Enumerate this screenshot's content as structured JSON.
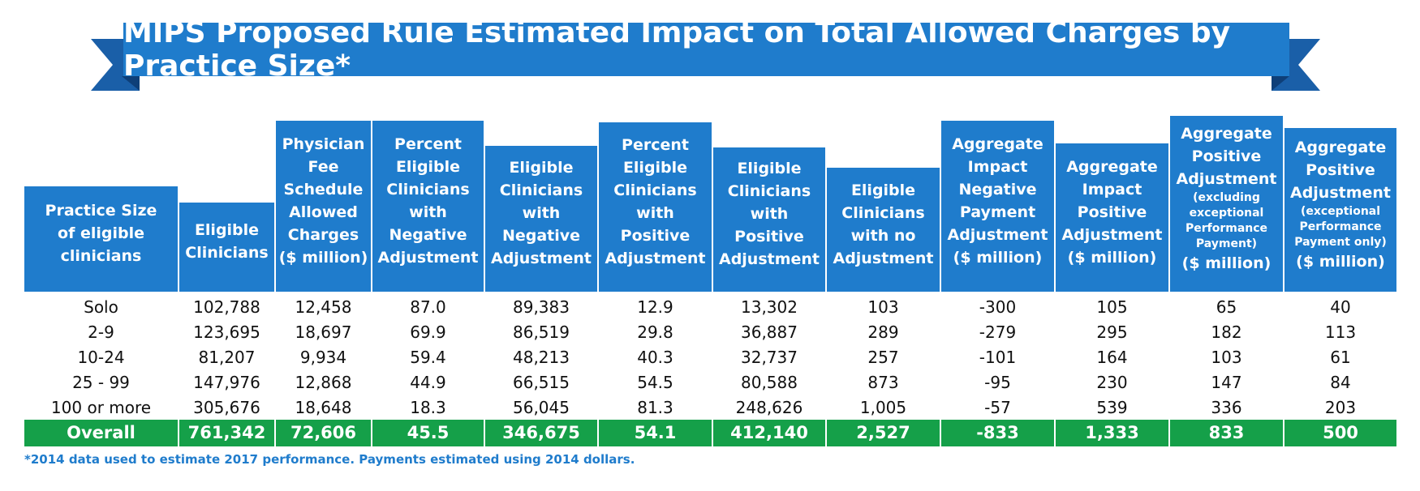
{
  "title": "MIPS Proposed Rule Estimated Impact on Total Allowed Charges by Practice Size*",
  "colors": {
    "header_blue": "#1f7ccc",
    "ribbon_dark": "#1a5fa8",
    "overall_green": "#15a049",
    "footnote_blue": "#1f7ccc"
  },
  "footnote": "*2014 data used to estimate 2017 performance. Payments estimated using 2014 dollars.",
  "chart_data": {
    "type": "table",
    "title": "MIPS Proposed Rule Estimated Impact on Total Allowed Charges by Practice Size*",
    "columns": [
      {
        "lines": [
          "Practice Size",
          "of eligible",
          "clinicians"
        ]
      },
      {
        "lines": [
          "Eligible",
          "Clinicians"
        ]
      },
      {
        "lines": [
          "Physician",
          "Fee",
          "Schedule",
          "Allowed",
          "Charges",
          "($ million)"
        ]
      },
      {
        "lines": [
          "Percent",
          "Eligible",
          "Clinicians",
          "with",
          "Negative",
          "Adjustment"
        ]
      },
      {
        "lines": [
          "Eligible",
          "Clinicians",
          "with",
          "Negative",
          "Adjustment"
        ]
      },
      {
        "lines": [
          "Percent",
          "Eligible",
          "Clinicians",
          "with",
          "Positive",
          "Adjustment"
        ]
      },
      {
        "lines": [
          "Eligible",
          "Clinicians",
          "with",
          "Positive",
          "Adjustment"
        ]
      },
      {
        "lines": [
          "Eligible",
          "Clinicians",
          "with no",
          "Adjustment"
        ]
      },
      {
        "lines": [
          "Aggregate",
          "Impact",
          "Negative",
          "Payment",
          "Adjustment",
          "($ million)"
        ]
      },
      {
        "lines": [
          "Aggregate",
          "Impact",
          "Positive",
          "Adjustment",
          "($ million)"
        ]
      },
      {
        "lines": [
          "Aggregate",
          "Positive",
          "Adjustment",
          "(excluding",
          "exceptional",
          "Performance",
          "Payment)",
          "($ million)"
        ]
      },
      {
        "lines": [
          "Aggregate",
          "Positive",
          "Adjustment",
          "(exceptional",
          "Performance",
          "Payment only)",
          "($ million)"
        ]
      }
    ],
    "rows": [
      [
        "Solo",
        "102,788",
        "12,458",
        "87.0",
        "89,383",
        "12.9",
        "13,302",
        "103",
        "-300",
        "105",
        "65",
        "40"
      ],
      [
        "2-9",
        "123,695",
        "18,697",
        "69.9",
        "86,519",
        "29.8",
        "36,887",
        "289",
        "-279",
        "295",
        "182",
        "113"
      ],
      [
        "10-24",
        "81,207",
        "9,934",
        "59.4",
        "48,213",
        "40.3",
        "32,737",
        "257",
        "-101",
        "164",
        "103",
        "61"
      ],
      [
        "25 - 99",
        "147,976",
        "12,868",
        "44.9",
        "66,515",
        "54.5",
        "80,588",
        "873",
        "-95",
        "230",
        "147",
        "84"
      ],
      [
        "100 or more",
        "305,676",
        "18,648",
        "18.3",
        "56,045",
        "81.3",
        "248,626",
        "1,005",
        "-57",
        "539",
        "336",
        "203"
      ]
    ],
    "overall": [
      "Overall",
      "761,342",
      "72,606",
      "45.5",
      "346,675",
      "54.1",
      "412,140",
      "2,527",
      "-833",
      "1,333",
      "833",
      "500"
    ]
  }
}
